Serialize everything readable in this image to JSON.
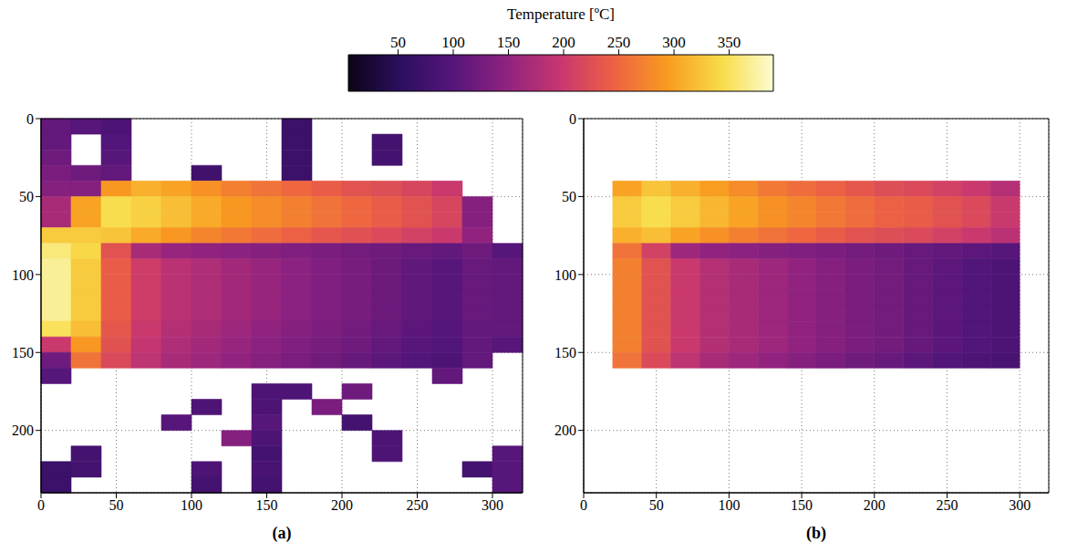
{
  "chart_data": {
    "type": "heatmap",
    "colorbar": {
      "label": "Temperature [ºC]",
      "range": [
        5,
        390
      ],
      "ticks": [
        50,
        100,
        150,
        200,
        250,
        300,
        350
      ]
    },
    "xlim": [
      0,
      320
    ],
    "ylim": [
      240,
      0
    ],
    "xticks": [
      0,
      50,
      100,
      150,
      200,
      250,
      300
    ],
    "yticks": [
      0,
      50,
      100,
      150,
      200
    ],
    "grid": true,
    "x_edges": [
      0,
      20,
      40,
      60,
      80,
      100,
      120,
      140,
      160,
      180,
      200,
      220,
      240,
      260,
      280,
      300,
      320
    ],
    "y_edges": [
      0,
      10,
      20,
      30,
      40,
      50,
      60,
      70,
      80,
      90,
      100,
      110,
      120,
      130,
      140,
      150,
      160,
      170,
      180,
      190,
      200,
      210,
      220,
      230,
      240
    ],
    "panels": [
      {
        "label": "(a)",
        "cells": [
          [
            110,
            100,
            90,
            null,
            null,
            null,
            null,
            null,
            70,
            null,
            null,
            null,
            null,
            null,
            null,
            null
          ],
          [
            110,
            null,
            95,
            null,
            null,
            null,
            null,
            null,
            70,
            null,
            null,
            80,
            null,
            null,
            null,
            null
          ],
          [
            120,
            null,
            100,
            null,
            null,
            null,
            null,
            null,
            70,
            null,
            null,
            80,
            null,
            null,
            null,
            null
          ],
          [
            130,
            120,
            110,
            null,
            null,
            75,
            null,
            null,
            70,
            null,
            null,
            null,
            null,
            null,
            null,
            null
          ],
          [
            140,
            140,
            290,
            310,
            300,
            285,
            270,
            260,
            250,
            240,
            230,
            225,
            215,
            200,
            null,
            null
          ],
          [
            170,
            300,
            345,
            335,
            320,
            305,
            290,
            280,
            270,
            260,
            250,
            240,
            230,
            215,
            140,
            null
          ],
          [
            170,
            300,
            345,
            335,
            320,
            305,
            290,
            280,
            270,
            260,
            250,
            240,
            230,
            215,
            140,
            null
          ],
          [
            330,
            330,
            325,
            305,
            290,
            275,
            265,
            255,
            245,
            235,
            228,
            220,
            210,
            200,
            150,
            null
          ],
          [
            360,
            340,
            230,
            170,
            155,
            150,
            145,
            140,
            135,
            130,
            125,
            120,
            115,
            110,
            120,
            100
          ],
          [
            370,
            330,
            240,
            205,
            185,
            175,
            165,
            155,
            145,
            135,
            128,
            118,
            108,
            100,
            115,
            110
          ],
          [
            370,
            330,
            240,
            205,
            185,
            175,
            165,
            155,
            145,
            135,
            128,
            118,
            108,
            100,
            115,
            110
          ],
          [
            370,
            330,
            240,
            205,
            185,
            175,
            165,
            155,
            145,
            135,
            128,
            118,
            108,
            100,
            115,
            110
          ],
          [
            370,
            330,
            240,
            205,
            185,
            175,
            165,
            155,
            145,
            135,
            128,
            118,
            108,
            100,
            115,
            110
          ],
          [
            350,
            320,
            235,
            200,
            180,
            170,
            160,
            150,
            140,
            132,
            125,
            115,
            105,
            98,
            110,
            110
          ],
          [
            200,
            290,
            230,
            195,
            175,
            165,
            155,
            145,
            135,
            128,
            120,
            110,
            100,
            95,
            110,
            100
          ],
          [
            120,
            260,
            220,
            190,
            170,
            160,
            150,
            140,
            130,
            122,
            115,
            105,
            95,
            90,
            110,
            null
          ],
          [
            100,
            null,
            null,
            null,
            null,
            null,
            null,
            null,
            null,
            null,
            null,
            null,
            null,
            110,
            null,
            null
          ],
          [
            null,
            null,
            null,
            null,
            null,
            null,
            null,
            90,
            90,
            null,
            120,
            null,
            null,
            null,
            null,
            null
          ],
          [
            null,
            null,
            null,
            null,
            null,
            90,
            null,
            90,
            null,
            130,
            null,
            null,
            null,
            null,
            null,
            null
          ],
          [
            null,
            null,
            null,
            null,
            100,
            null,
            null,
            100,
            null,
            null,
            80,
            null,
            null,
            null,
            null,
            null
          ],
          [
            null,
            null,
            null,
            null,
            null,
            null,
            140,
            90,
            null,
            null,
            null,
            90,
            null,
            null,
            null,
            null
          ],
          [
            null,
            80,
            null,
            null,
            null,
            null,
            null,
            80,
            null,
            null,
            null,
            90,
            null,
            null,
            null,
            100
          ],
          [
            70,
            80,
            null,
            null,
            null,
            90,
            null,
            85,
            null,
            null,
            null,
            null,
            null,
            null,
            80,
            100
          ],
          [
            70,
            null,
            null,
            null,
            null,
            80,
            null,
            80,
            null,
            null,
            null,
            null,
            null,
            null,
            null,
            100
          ]
        ]
      },
      {
        "label": "(b)",
        "cells": [
          [
            null,
            null,
            null,
            null,
            null,
            null,
            null,
            null,
            null,
            null,
            null,
            null,
            null,
            null,
            null,
            null
          ],
          [
            null,
            null,
            null,
            null,
            null,
            null,
            null,
            null,
            null,
            null,
            null,
            null,
            null,
            null,
            null,
            null
          ],
          [
            null,
            null,
            null,
            null,
            null,
            null,
            null,
            null,
            null,
            null,
            null,
            null,
            null,
            null,
            null,
            null
          ],
          [
            null,
            null,
            null,
            null,
            null,
            null,
            null,
            null,
            null,
            null,
            null,
            null,
            null,
            null,
            null,
            null
          ],
          [
            null,
            300,
            325,
            310,
            295,
            280,
            265,
            255,
            245,
            235,
            225,
            220,
            210,
            200,
            180,
            null
          ],
          [
            null,
            330,
            345,
            330,
            315,
            300,
            285,
            275,
            265,
            255,
            245,
            240,
            230,
            220,
            200,
            null
          ],
          [
            null,
            330,
            345,
            330,
            315,
            300,
            285,
            275,
            265,
            255,
            245,
            240,
            230,
            220,
            200,
            null
          ],
          [
            null,
            310,
            320,
            300,
            285,
            270,
            260,
            250,
            240,
            230,
            225,
            220,
            210,
            200,
            185,
            null
          ],
          [
            null,
            260,
            210,
            160,
            150,
            145,
            140,
            135,
            130,
            125,
            120,
            115,
            110,
            105,
            100,
            null
          ],
          [
            null,
            270,
            230,
            200,
            180,
            170,
            160,
            150,
            140,
            130,
            125,
            115,
            105,
            95,
            90,
            null
          ],
          [
            null,
            270,
            230,
            200,
            180,
            170,
            160,
            150,
            140,
            130,
            125,
            115,
            105,
            95,
            90,
            null
          ],
          [
            null,
            270,
            230,
            200,
            180,
            170,
            160,
            150,
            140,
            130,
            125,
            115,
            105,
            95,
            90,
            null
          ],
          [
            null,
            270,
            230,
            200,
            180,
            170,
            160,
            150,
            140,
            130,
            125,
            115,
            105,
            95,
            90,
            null
          ],
          [
            null,
            270,
            230,
            200,
            180,
            170,
            160,
            150,
            140,
            130,
            125,
            115,
            105,
            95,
            90,
            null
          ],
          [
            null,
            270,
            230,
            200,
            180,
            170,
            160,
            150,
            140,
            130,
            125,
            115,
            105,
            95,
            90,
            null
          ],
          [
            null,
            260,
            220,
            190,
            170,
            160,
            150,
            140,
            130,
            120,
            115,
            105,
            95,
            90,
            85,
            null
          ],
          [
            null,
            null,
            null,
            null,
            null,
            null,
            null,
            null,
            null,
            null,
            null,
            null,
            null,
            null,
            null,
            null
          ],
          [
            null,
            null,
            null,
            null,
            null,
            null,
            null,
            null,
            null,
            null,
            null,
            null,
            null,
            null,
            null,
            null
          ],
          [
            null,
            null,
            null,
            null,
            null,
            null,
            null,
            null,
            null,
            null,
            null,
            null,
            null,
            null,
            null,
            null
          ],
          [
            null,
            null,
            null,
            null,
            null,
            null,
            null,
            null,
            null,
            null,
            null,
            null,
            null,
            null,
            null,
            null
          ],
          [
            null,
            null,
            null,
            null,
            null,
            null,
            null,
            null,
            null,
            null,
            null,
            null,
            null,
            null,
            null,
            null
          ],
          [
            null,
            null,
            null,
            null,
            null,
            null,
            null,
            null,
            null,
            null,
            null,
            null,
            null,
            null,
            null,
            null
          ],
          [
            null,
            null,
            null,
            null,
            null,
            null,
            null,
            null,
            null,
            null,
            null,
            null,
            null,
            null,
            null,
            null
          ],
          [
            null,
            null,
            null,
            null,
            null,
            null,
            null,
            null,
            null,
            null,
            null,
            null,
            null,
            null,
            null,
            null
          ]
        ]
      }
    ]
  }
}
